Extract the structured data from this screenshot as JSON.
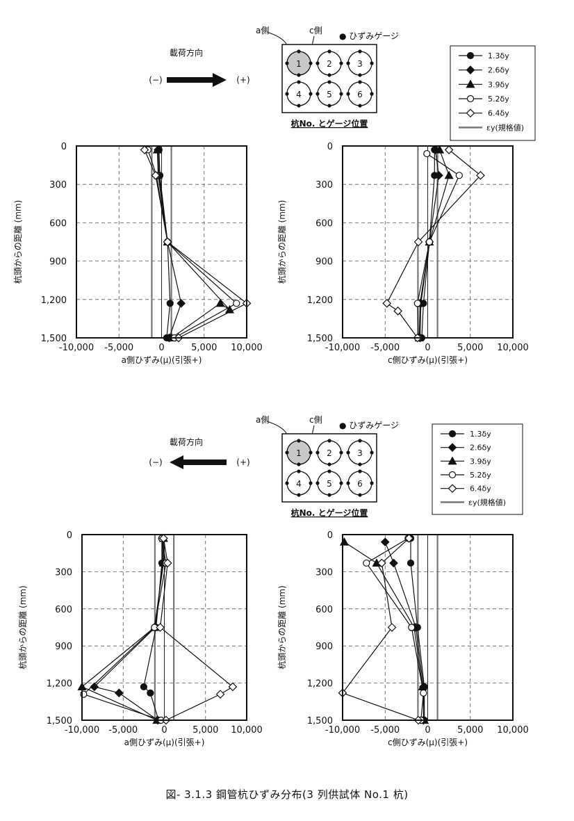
{
  "caption": "図- 3.1.3 鋼管杭ひずみ分布(3 列供試体 No.1 杭)",
  "colors": {
    "line": "#111111",
    "grid": "#555555",
    "ey": "#777777"
  },
  "groups": [
    {
      "direction_label": "載荷方向",
      "neg_label": "(−)",
      "pos_label": "(+)",
      "arrow": "right",
      "a_side_label": "a側",
      "c_side_label": "c側",
      "gauge_label": "● ひずみゲージ",
      "pile_numbers": [
        "1",
        "2",
        "3",
        "4",
        "5",
        "6"
      ],
      "pile_caption": "杭No. とゲージ位置",
      "legend": [
        "1.3δy",
        "2.6δy",
        "3.9δy",
        "5.2δy",
        "6.4δy",
        "εy(規格値)"
      ]
    },
    {
      "direction_label": "載荷方向",
      "neg_label": "(−)",
      "pos_label": "(+)",
      "arrow": "left",
      "a_side_label": "a側",
      "c_side_label": "c側",
      "gauge_label": "● ひずみゲージ",
      "pile_numbers": [
        "1",
        "2",
        "3",
        "4",
        "5",
        "6"
      ],
      "pile_caption": "杭No. とゲージ位置",
      "legend": [
        "1.3δy",
        "2.6δy",
        "3.9δy",
        "5.2δy",
        "6.4δy",
        "εy(規格値)"
      ]
    }
  ],
  "chart_data": [
    {
      "type": "line",
      "panel": "top-left",
      "xlabel": "a側ひずみ(μ)(引張+)",
      "ylabel": "杭頭からの距離 (mm)",
      "xlim": [
        -10000,
        10000
      ],
      "ylim": [
        1500,
        0
      ],
      "xticks": [
        "-10,000",
        "-5,000",
        "0",
        "5,000",
        "10,000"
      ],
      "yticks": [
        "0",
        "300",
        "600",
        "900",
        "1,200",
        "1,500"
      ],
      "ey": 1150,
      "series": [
        {
          "name": "1.3δy",
          "marker": "circle",
          "fill": true,
          "points": [
            [
              -300,
              30
            ],
            [
              -200,
              230
            ],
            [
              700,
              750
            ],
            [
              1000,
              1230
            ],
            [
              600,
              1500
            ]
          ]
        },
        {
          "name": "2.6δy",
          "marker": "diamond",
          "fill": true,
          "points": [
            [
              -400,
              30
            ],
            [
              -300,
              230
            ],
            [
              700,
              750
            ],
            [
              2300,
              1230
            ],
            [
              900,
              1500
            ]
          ]
        },
        {
          "name": "3.9δy",
          "marker": "triangle",
          "fill": true,
          "points": [
            [
              -500,
              30
            ],
            [
              -400,
              230
            ],
            [
              700,
              750
            ],
            [
              8000,
              1280
            ],
            [
              6900,
              1230
            ],
            [
              1200,
              1500
            ]
          ]
        },
        {
          "name": "5.2δy",
          "marker": "circle",
          "fill": false,
          "points": [
            [
              -1600,
              30
            ],
            [
              -600,
              230
            ],
            [
              700,
              750
            ],
            [
              8800,
              1230
            ],
            [
              1500,
              1500
            ]
          ]
        },
        {
          "name": "6.4δy",
          "marker": "diamond",
          "fill": false,
          "points": [
            [
              -2000,
              30
            ],
            [
              -700,
              230
            ],
            [
              700,
              750
            ],
            [
              10000,
              1230
            ],
            [
              2000,
              1500
            ]
          ]
        }
      ]
    },
    {
      "type": "line",
      "panel": "top-right",
      "xlabel": "c側ひずみ(μ)(引張+)",
      "ylabel": "杭頭からの距離 (mm)",
      "xlim": [
        -10000,
        10000
      ],
      "ylim": [
        1500,
        0
      ],
      "xticks": [
        "-10,000",
        "-5,000",
        "0",
        "5,000",
        "10,000"
      ],
      "yticks": [
        "0",
        "300",
        "600",
        "900",
        "1,200",
        "1,500"
      ],
      "ey": 1150,
      "series": [
        {
          "name": "1.3δy",
          "marker": "circle",
          "fill": true,
          "points": [
            [
              800,
              30
            ],
            [
              800,
              230
            ],
            [
              200,
              750
            ],
            [
              -500,
              1230
            ],
            [
              -700,
              1500
            ]
          ]
        },
        {
          "name": "2.6δy",
          "marker": "diamond",
          "fill": true,
          "points": [
            [
              900,
              30
            ],
            [
              1300,
              230
            ],
            [
              200,
              750
            ],
            [
              -800,
              1230
            ],
            [
              -900,
              1500
            ]
          ]
        },
        {
          "name": "3.9δy",
          "marker": "triangle",
          "fill": true,
          "points": [
            [
              1400,
              30
            ],
            [
              2500,
              230
            ],
            [
              200,
              750
            ],
            [
              -900,
              1230
            ],
            [
              -1000,
              1500
            ]
          ]
        },
        {
          "name": "5.2δy",
          "marker": "circle",
          "fill": false,
          "points": [
            [
              -100,
              60
            ],
            [
              3700,
              230
            ],
            [
              200,
              750
            ],
            [
              -1200,
              1230
            ],
            [
              -1100,
              1500
            ]
          ]
        },
        {
          "name": "6.4δy",
          "marker": "diamond",
          "fill": false,
          "points": [
            [
              2500,
              30
            ],
            [
              6200,
              230
            ],
            [
              -1100,
              750
            ],
            [
              -4800,
              1230
            ],
            [
              -3500,
              1290
            ],
            [
              -1200,
              1500
            ]
          ]
        }
      ]
    },
    {
      "type": "line",
      "panel": "bottom-left",
      "xlabel": "a側ひずみ(μ)(引張+)",
      "ylabel": "杭頭からの距離 (mm)",
      "xlim": [
        -10000,
        10000
      ],
      "ylim": [
        1500,
        0
      ],
      "xticks": [
        "-10,000",
        "-5,000",
        "0",
        "5,000",
        "10,000"
      ],
      "yticks": [
        "0",
        "300",
        "600",
        "900",
        "1,200",
        "1,500"
      ],
      "ey": 1150,
      "series": [
        {
          "name": "1.3δy",
          "marker": "circle",
          "fill": true,
          "points": [
            [
              -300,
              30
            ],
            [
              -300,
              230
            ],
            [
              -1000,
              750
            ],
            [
              -2500,
              1230
            ],
            [
              -1700,
              1280
            ],
            [
              -700,
              1500
            ]
          ]
        },
        {
          "name": "2.6δy",
          "marker": "diamond",
          "fill": true,
          "points": [
            [
              -200,
              30
            ],
            [
              -200,
              230
            ],
            [
              -1100,
              750
            ],
            [
              -8500,
              1230
            ],
            [
              -5500,
              1280
            ],
            [
              -800,
              1500
            ]
          ]
        },
        {
          "name": "3.9δy",
          "marker": "triangle",
          "fill": true,
          "points": [
            [
              -100,
              30
            ],
            [
              -100,
              230
            ],
            [
              -1200,
              750
            ],
            [
              -10000,
              1230
            ],
            [
              -900,
              1500
            ]
          ]
        },
        {
          "name": "5.2δy",
          "marker": "circle",
          "fill": false,
          "points": [
            [
              -300,
              30
            ],
            [
              200,
              230
            ],
            [
              -1200,
              750
            ],
            [
              -9800,
              1290
            ],
            [
              -400,
              1500
            ]
          ]
        },
        {
          "name": "6.4δy",
          "marker": "diamond",
          "fill": false,
          "points": [
            [
              -100,
              30
            ],
            [
              400,
              230
            ],
            [
              -500,
              750
            ],
            [
              8300,
              1230
            ],
            [
              6800,
              1290
            ],
            [
              200,
              1500
            ]
          ]
        }
      ]
    },
    {
      "type": "line",
      "panel": "bottom-right",
      "xlabel": "c側ひずみ(μ)(引張+)",
      "ylabel": "杭頭からの距離 (mm)",
      "xlim": [
        -10000,
        10000
      ],
      "ylim": [
        1500,
        0
      ],
      "xticks": [
        "-10,000",
        "-5,000",
        "0",
        "5,000",
        "10,000"
      ],
      "yticks": [
        "0",
        "300",
        "600",
        "900",
        "1,200",
        "1,500"
      ],
      "ey": 1150,
      "series": [
        {
          "name": "1.3δy",
          "marker": "circle",
          "fill": true,
          "points": [
            [
              -2000,
              30
            ],
            [
              -2000,
              230
            ],
            [
              -1200,
              750
            ],
            [
              -400,
              1230
            ],
            [
              -400,
              1500
            ]
          ]
        },
        {
          "name": "2.6δy",
          "marker": "diamond",
          "fill": true,
          "points": [
            [
              -5000,
              60
            ],
            [
              -4000,
              230
            ],
            [
              -1400,
              750
            ],
            [
              -500,
              1230
            ],
            [
              -500,
              1500
            ]
          ]
        },
        {
          "name": "3.9δy",
          "marker": "triangle",
          "fill": true,
          "points": [
            [
              -9800,
              60
            ],
            [
              -6000,
              230
            ],
            [
              -1600,
              750
            ],
            [
              -600,
              1230
            ],
            [
              -400,
              1500
            ]
          ]
        },
        {
          "name": "5.2δy",
          "marker": "circle",
          "fill": false,
          "points": [
            [
              -2300,
              30
            ],
            [
              -7200,
              230
            ],
            [
              -1900,
              750
            ],
            [
              -500,
              1280
            ],
            [
              -800,
              1500
            ]
          ]
        },
        {
          "name": "6.4δy",
          "marker": "diamond",
          "fill": false,
          "points": [
            [
              -2200,
              30
            ],
            [
              -5400,
              230
            ],
            [
              -4200,
              750
            ],
            [
              -10000,
              1280
            ],
            [
              -1100,
              1500
            ]
          ]
        }
      ]
    }
  ]
}
